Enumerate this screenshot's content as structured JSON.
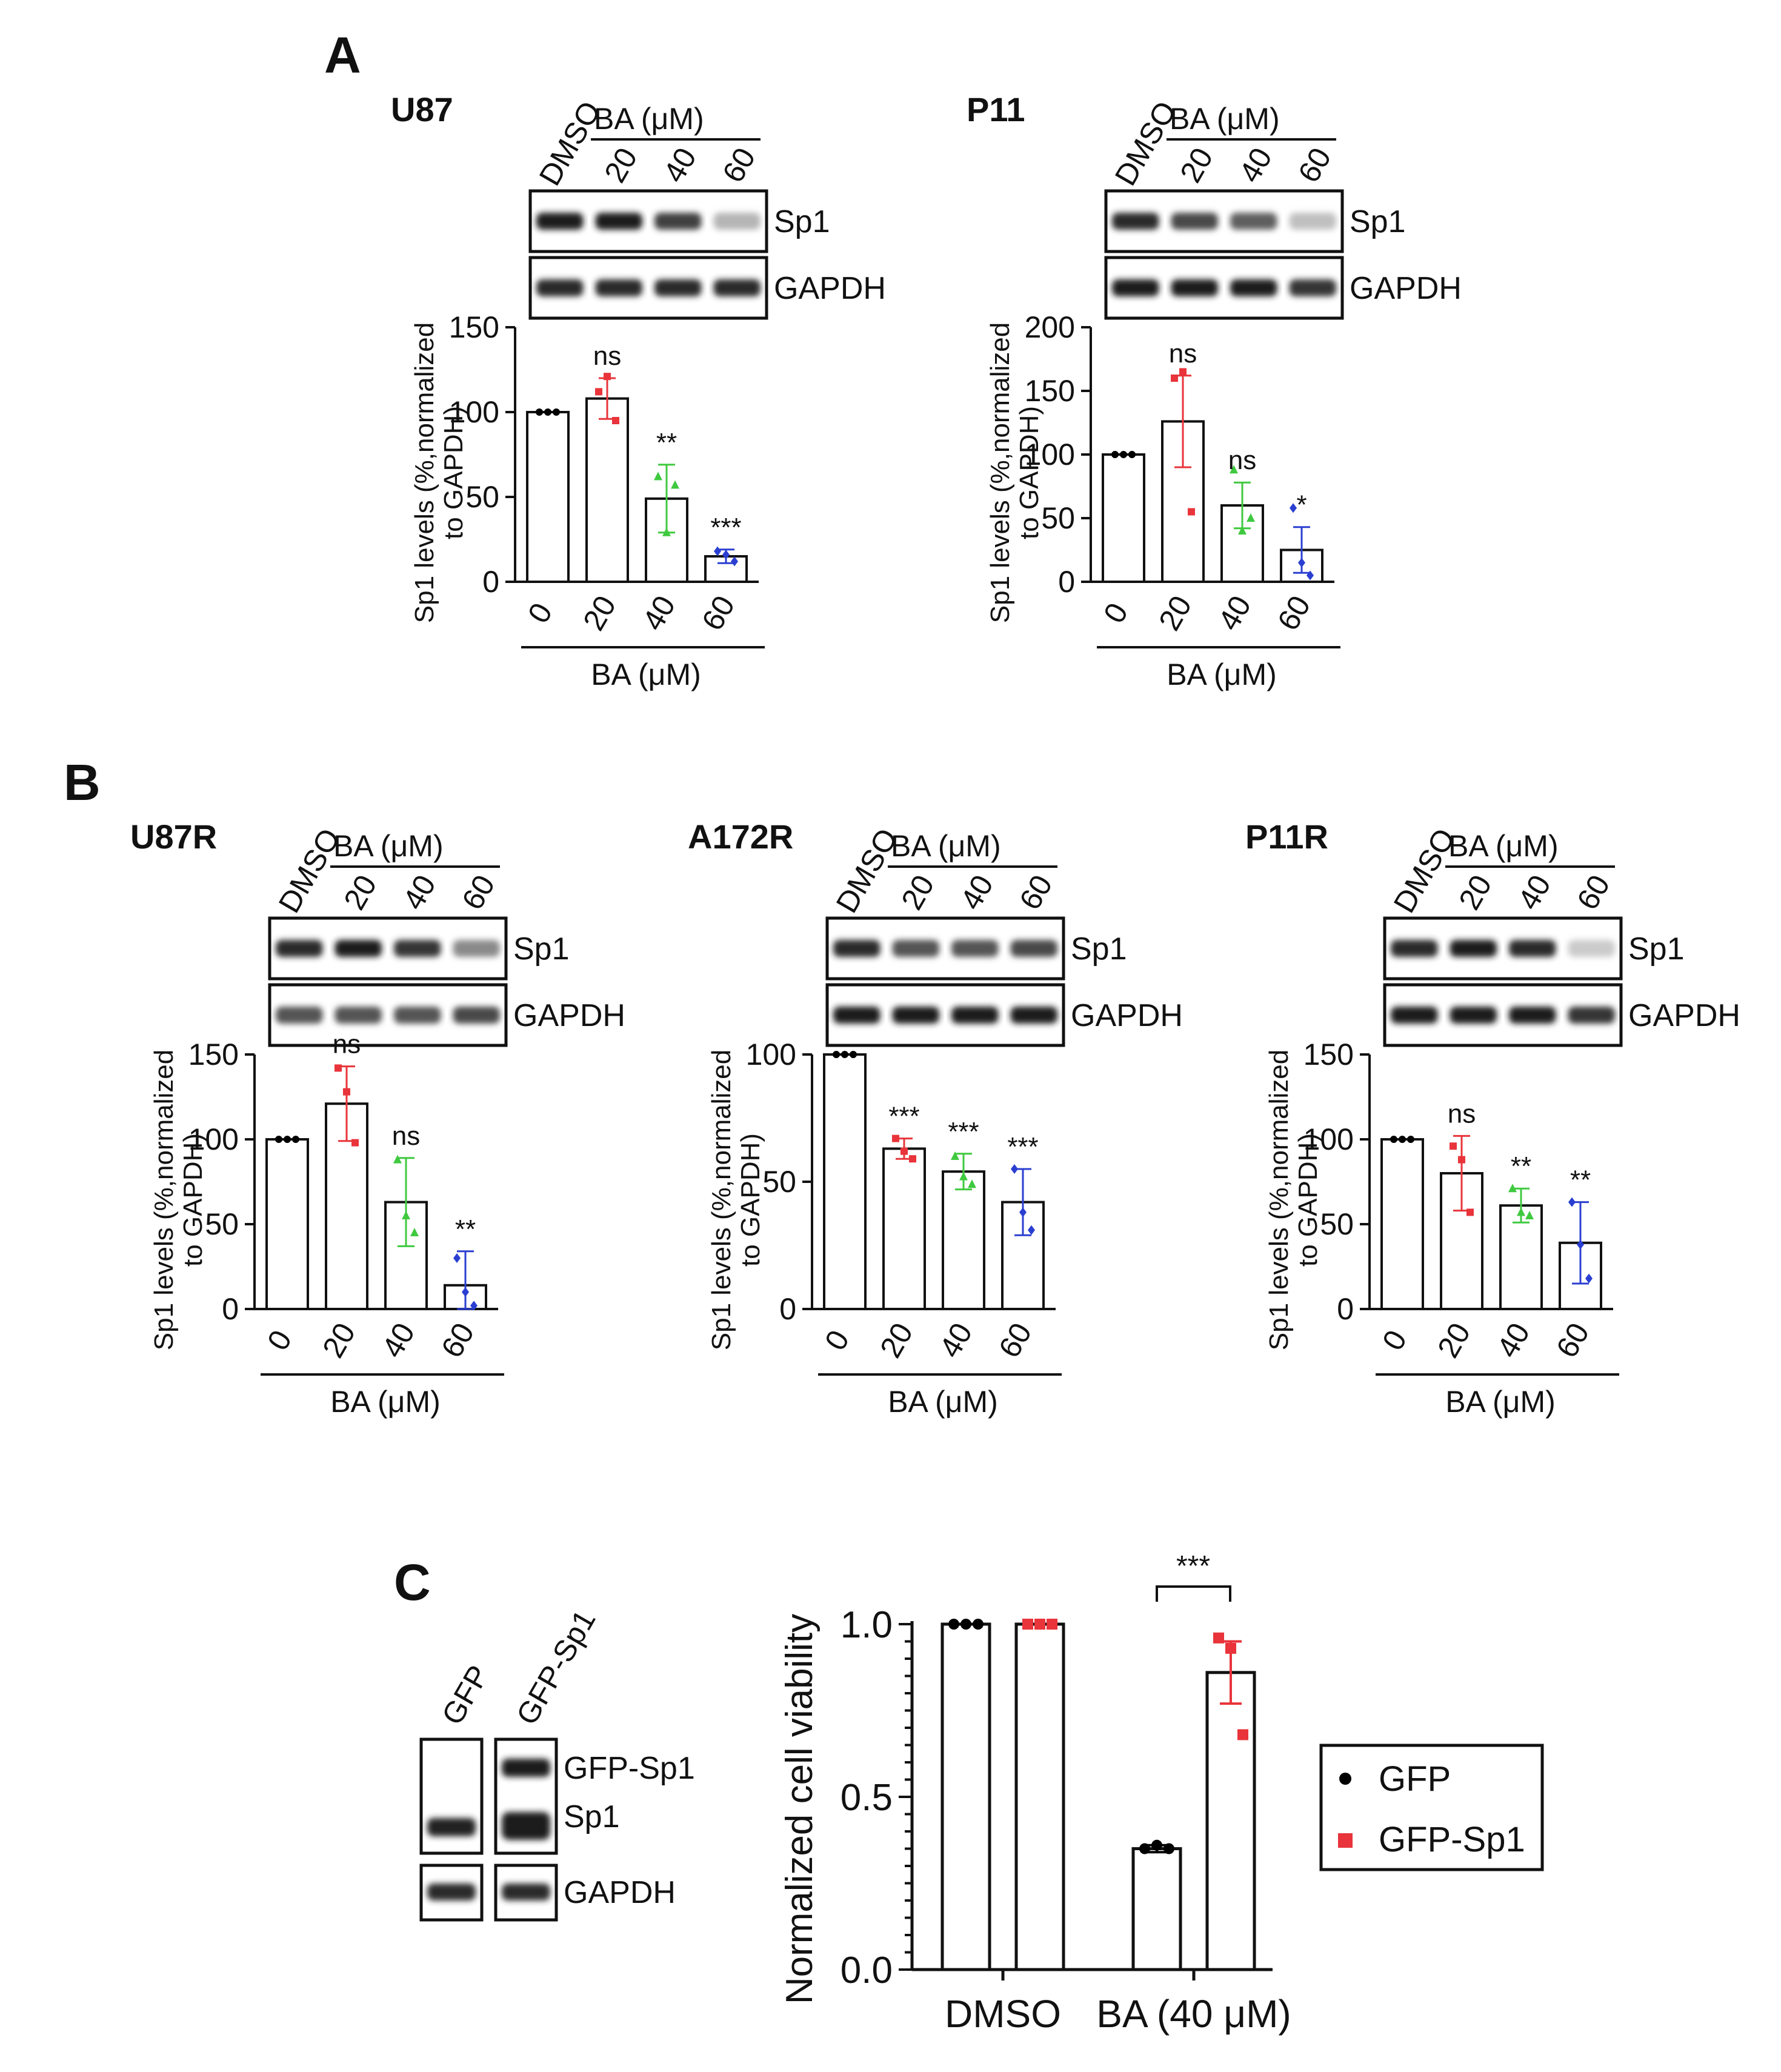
{
  "figure": {
    "panel_labels": [
      "A",
      "B",
      "C"
    ],
    "blot_axis_group": "BA (μM)",
    "lane_labels": [
      "DMSO",
      "20",
      "40",
      "60"
    ],
    "band_labels": [
      "Sp1",
      "GAPDH"
    ],
    "bar_xlabel": "BA (μM)",
    "bar_ylabel_1": "Sp1 levels (%,normalized",
    "bar_ylabel_2": "to GAPDH)"
  },
  "panels": [
    {
      "id": "A",
      "cell_line": "U87",
      "gel": {
        "sp1": [
          0.95,
          0.95,
          0.8,
          0.25
        ],
        "gapdh": [
          0.9,
          0.9,
          0.9,
          0.9
        ]
      },
      "chart": {
        "type": "bar",
        "categories": [
          "0",
          "20",
          "40",
          "60"
        ],
        "values": [
          100,
          108,
          49,
          15
        ],
        "errors": [
          0,
          12,
          20,
          4
        ],
        "sig": [
          "",
          "ns",
          "**",
          "***"
        ],
        "ylim": [
          0,
          150
        ],
        "ticks": [
          0,
          50,
          100,
          150
        ],
        "points": [
          [
            100,
            100,
            100
          ],
          [
            112,
            121,
            95
          ],
          [
            62,
            29,
            57
          ],
          [
            18,
            16,
            12
          ]
        ]
      }
    },
    {
      "id": "A2",
      "cell_line": "P11",
      "gel": {
        "sp1": [
          0.9,
          0.75,
          0.65,
          0.2
        ],
        "gapdh": [
          0.95,
          0.95,
          0.95,
          0.85
        ]
      },
      "chart": {
        "type": "bar",
        "categories": [
          "0",
          "20",
          "40",
          "60"
        ],
        "values": [
          100,
          126,
          60,
          25
        ],
        "errors": [
          0,
          36,
          18,
          18
        ],
        "sig": [
          "",
          "ns",
          "ns",
          "*"
        ],
        "ylim": [
          0,
          200
        ],
        "ticks": [
          0,
          50,
          100,
          150,
          200
        ],
        "points": [
          [
            100,
            100,
            100
          ],
          [
            160,
            165,
            55
          ],
          [
            88,
            40,
            50
          ],
          [
            58,
            15,
            5
          ]
        ]
      }
    },
    {
      "id": "B",
      "cell_line": "U87R",
      "gel": {
        "sp1": [
          0.9,
          0.95,
          0.85,
          0.45
        ],
        "gapdh": [
          0.7,
          0.7,
          0.7,
          0.75
        ]
      },
      "chart": {
        "type": "bar",
        "categories": [
          "0",
          "20",
          "40",
          "60"
        ],
        "values": [
          100,
          121,
          63,
          14
        ],
        "errors": [
          0,
          22,
          26,
          20
        ],
        "sig": [
          "",
          "ns",
          "ns",
          "**"
        ],
        "ylim": [
          0,
          150
        ],
        "ticks": [
          0,
          50,
          100,
          150
        ],
        "points": [
          [
            100,
            100,
            100
          ],
          [
            142,
            128,
            98
          ],
          [
            88,
            55,
            45
          ],
          [
            30,
            10,
            2
          ]
        ]
      }
    },
    {
      "id": "B2",
      "cell_line": "A172R",
      "gel": {
        "sp1": [
          0.9,
          0.7,
          0.7,
          0.75
        ],
        "gapdh": [
          0.95,
          0.95,
          0.95,
          0.95
        ]
      },
      "chart": {
        "type": "bar",
        "categories": [
          "0",
          "20",
          "40",
          "60"
        ],
        "values": [
          100,
          63,
          54,
          42
        ],
        "errors": [
          0,
          4,
          7,
          13
        ],
        "sig": [
          "",
          "***",
          "***",
          "***"
        ],
        "ylim": [
          0,
          100
        ],
        "ticks": [
          0,
          50,
          100
        ],
        "points": [
          [
            100,
            100,
            100
          ],
          [
            67,
            62,
            59
          ],
          [
            60,
            52,
            49
          ],
          [
            55,
            38,
            31
          ]
        ]
      }
    },
    {
      "id": "B3",
      "cell_line": "P11R",
      "gel": {
        "sp1": [
          0.9,
          0.95,
          0.9,
          0.15
        ],
        "gapdh": [
          0.95,
          0.95,
          0.95,
          0.85
        ]
      },
      "chart": {
        "type": "bar",
        "categories": [
          "0",
          "20",
          "40",
          "60"
        ],
        "values": [
          100,
          80,
          61,
          39
        ],
        "errors": [
          0,
          22,
          10,
          24
        ],
        "sig": [
          "",
          "ns",
          "**",
          "**"
        ],
        "ylim": [
          0,
          150
        ],
        "ticks": [
          0,
          50,
          100,
          150
        ],
        "points": [
          [
            100,
            100,
            100
          ],
          [
            96,
            88,
            57
          ],
          [
            71,
            57,
            55
          ],
          [
            63,
            38,
            18
          ]
        ]
      }
    }
  ],
  "panel_c": {
    "label": "C",
    "lanes": [
      "GFP",
      "GFP-Sp1"
    ],
    "bands": [
      "GFP-Sp1",
      "Sp1",
      "GAPDH"
    ]
  },
  "chart_data": [
    {
      "type": "bar",
      "title": "U87",
      "categories": [
        "0",
        "20",
        "40",
        "60"
      ],
      "values": [
        100,
        108,
        49,
        15
      ],
      "xlabel": "BA (μM)",
      "ylabel": "Sp1 levels (%,normalized to GAPDH)",
      "ylim": [
        0,
        150
      ],
      "annotations": [
        "",
        "ns",
        "**",
        "***"
      ]
    },
    {
      "type": "bar",
      "title": "P11",
      "categories": [
        "0",
        "20",
        "40",
        "60"
      ],
      "values": [
        100,
        126,
        60,
        25
      ],
      "xlabel": "BA (μM)",
      "ylabel": "Sp1 levels (%,normalized to GAPDH)",
      "ylim": [
        0,
        200
      ],
      "annotations": [
        "",
        "ns",
        "ns",
        "*"
      ]
    },
    {
      "type": "bar",
      "title": "U87R",
      "categories": [
        "0",
        "20",
        "40",
        "60"
      ],
      "values": [
        100,
        121,
        63,
        14
      ],
      "xlabel": "BA (μM)",
      "ylabel": "Sp1 levels (%,normalized to GAPDH)",
      "ylim": [
        0,
        150
      ],
      "annotations": [
        "",
        "ns",
        "ns",
        "**"
      ]
    },
    {
      "type": "bar",
      "title": "A172R",
      "categories": [
        "0",
        "20",
        "40",
        "60"
      ],
      "values": [
        100,
        63,
        54,
        42
      ],
      "xlabel": "BA (μM)",
      "ylabel": "Sp1 levels (%,normalized to GAPDH)",
      "ylim": [
        0,
        100
      ],
      "annotations": [
        "",
        "***",
        "***",
        "***"
      ]
    },
    {
      "type": "bar",
      "title": "P11R",
      "categories": [
        "0",
        "20",
        "40",
        "60"
      ],
      "values": [
        100,
        80,
        61,
        39
      ],
      "xlabel": "BA (μM)",
      "ylabel": "Sp1 levels (%,normalized to GAPDH)",
      "ylim": [
        0,
        150
      ],
      "annotations": [
        "",
        "ns",
        "**",
        "**"
      ]
    },
    {
      "type": "bar",
      "title": "",
      "ylabel": "Normalized cell viability",
      "categories": [
        "DMSO",
        "BA (40 μM)"
      ],
      "series": [
        {
          "name": "GFP",
          "values": [
            1.0,
            0.35
          ],
          "errors": [
            0,
            0.01
          ],
          "points": [
            [
              1,
              1,
              1
            ],
            [
              0.35,
              0.36,
              0.35
            ]
          ]
        },
        {
          "name": "GFP-Sp1",
          "values": [
            1.0,
            0.86
          ],
          "errors": [
            0,
            0.09
          ],
          "points": [
            [
              1,
              1,
              1
            ],
            [
              0.96,
              0.93,
              0.68
            ]
          ]
        }
      ],
      "ylim": [
        0,
        1.0
      ],
      "ticks": [
        "0.0",
        "0.5",
        "1.0"
      ],
      "annotations": [
        "***"
      ],
      "legend": "right"
    }
  ],
  "colors": {
    "series": [
      "#000000",
      "#e8343a",
      "#3fc93f",
      "#2a3fd1"
    ],
    "bar_edge": "#111111",
    "band": "#1a1a1a"
  }
}
